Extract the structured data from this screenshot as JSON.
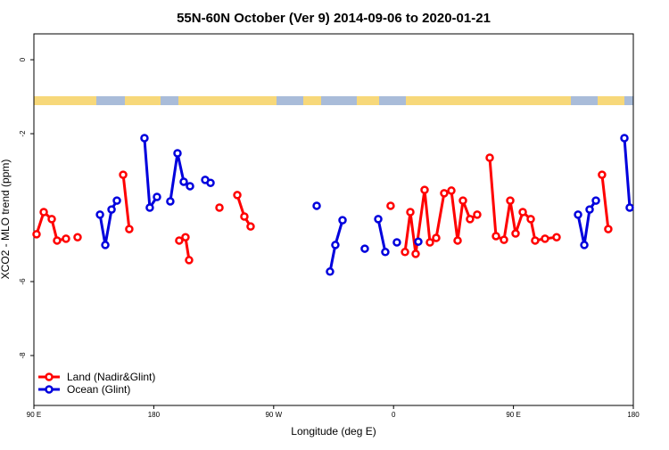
{
  "chart_data": {
    "type": "line",
    "title": "55N-60N October (Ver 9)   2014-09-06 to 2020-01-21",
    "xlabel": "Longitude (deg E)",
    "ylabel": "XCO2 - MLO trend (ppm)",
    "xlim": [
      90,
      540
    ],
    "ylim": [
      -9.35,
      0.7
    ],
    "xticks": [
      {
        "value": 90,
        "label": "90 E"
      },
      180,
      {
        "value": 270,
        "label": "90 W"
      },
      {
        "value": 360,
        "label": "0"
      },
      {
        "value": 450,
        "label": "90 E"
      },
      {
        "value": 540,
        "label": "180"
      }
    ],
    "yticks": [
      0,
      -2,
      -6,
      -8
    ],
    "legend": "lower left",
    "series": [
      {
        "name": "Land (Nadir&Glint)",
        "color": "#ff0000",
        "x": [
          92.0,
          97.4,
          103.4,
          107.4,
          114.1,
          null,
          122.8,
          null,
          157.0,
          161.6,
          null,
          199.1,
          203.8,
          206.5,
          null,
          229.3,
          null,
          242.7,
          248.0,
          252.7,
          null,
          357.8,
          null,
          368.6,
          372.6,
          376.6,
          383.3,
          387.3,
          392.0,
          398.0,
          403.4,
          408.1,
          412.1,
          417.4,
          422.8,
          null,
          432.2,
          436.9,
          442.9,
          447.6,
          451.6,
          457.0,
          463.0,
          466.3,
          473.7,
          482.4,
          null,
          516.5,
          521.2
        ],
        "values": [
          -4.72,
          -4.12,
          -4.31,
          -4.89,
          -4.84,
          null,
          -4.8,
          null,
          -3.11,
          -4.58,
          null,
          -4.89,
          -4.8,
          -5.42,
          null,
          -4.0,
          null,
          -3.66,
          -4.24,
          -4.51,
          null,
          -3.95,
          null,
          -5.2,
          -4.12,
          -5.25,
          -3.52,
          -4.94,
          -4.82,
          -3.61,
          -3.54,
          -4.89,
          -3.81,
          -4.31,
          -4.19,
          null,
          -2.65,
          -4.77,
          -4.87,
          -3.81,
          -4.7,
          -4.12,
          -4.31,
          -4.89,
          -4.84,
          -4.8,
          null,
          -3.11,
          -4.58
        ]
      },
      {
        "name": "Ocean (Glint)",
        "color": "#0000dd",
        "x": [
          139.6,
          143.6,
          148.3,
          152.3,
          null,
          173.0,
          177.0,
          182.4,
          null,
          192.4,
          197.8,
          202.5,
          207.2,
          null,
          218.6,
          222.6,
          null,
          302.3,
          null,
          312.3,
          316.3,
          321.7,
          null,
          338.4,
          null,
          348.5,
          353.8,
          null,
          362.5,
          null,
          378.6,
          null,
          498.5,
          503.2,
          507.2,
          511.9,
          null,
          533.3,
          537.3
        ],
        "values": [
          -4.19,
          -5.01,
          -4.05,
          -3.81,
          null,
          -2.12,
          -4.0,
          -3.71,
          null,
          -3.83,
          -2.53,
          -3.3,
          -3.42,
          null,
          -3.25,
          -3.33,
          null,
          -3.95,
          null,
          -5.73,
          -5.01,
          -4.34,
          null,
          -5.11,
          null,
          -4.31,
          -5.2,
          null,
          -4.94,
          null,
          -4.92,
          null,
          -4.19,
          -5.01,
          -4.05,
          -3.81,
          null,
          -2.12,
          -4.0
        ]
      }
    ]
  }
}
